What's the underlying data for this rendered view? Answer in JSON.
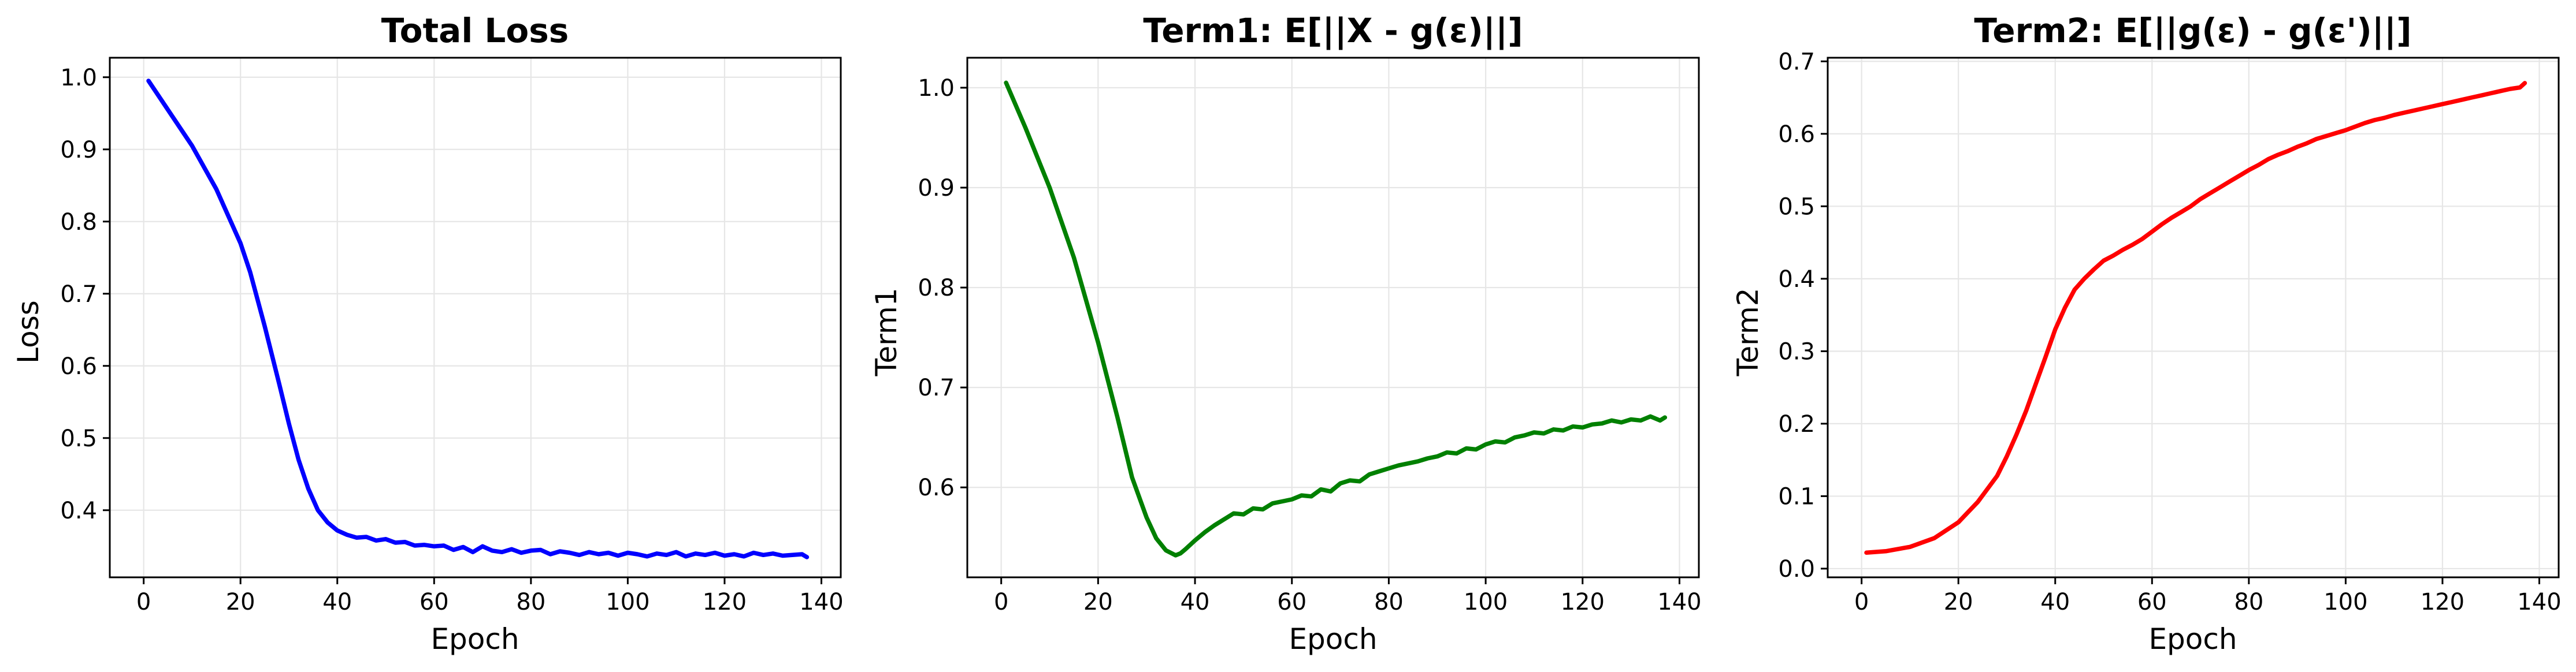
{
  "figure": {
    "layout": "1 row x 3 panels",
    "background": "#ffffff"
  },
  "chart_data": [
    {
      "type": "line",
      "title": "Total Loss",
      "xlabel": "Epoch",
      "ylabel": "Loss",
      "xlim": [
        -7,
        144
      ],
      "ylim": [
        0.307,
        1.027
      ],
      "xticks": [
        0,
        20,
        40,
        60,
        80,
        100,
        120,
        140
      ],
      "yticks": [
        0.4,
        0.5,
        0.6,
        0.7,
        0.8,
        0.9,
        1.0
      ],
      "ytick_decimals": 1,
      "grid": true,
      "series": [
        {
          "color": "#0000ff",
          "x": [
            1,
            5,
            10,
            15,
            20,
            22,
            25,
            28,
            30,
            32,
            34,
            36,
            38,
            40,
            42,
            44,
            46,
            48,
            50,
            52,
            54,
            56,
            58,
            60,
            62,
            64,
            66,
            68,
            70,
            72,
            74,
            76,
            78,
            80,
            82,
            84,
            86,
            88,
            90,
            92,
            94,
            96,
            98,
            100,
            102,
            104,
            106,
            108,
            110,
            112,
            114,
            116,
            118,
            120,
            122,
            124,
            126,
            128,
            130,
            132,
            134,
            136,
            137
          ],
          "y": [
            0.995,
            0.955,
            0.905,
            0.845,
            0.77,
            0.73,
            0.655,
            0.575,
            0.52,
            0.47,
            0.43,
            0.4,
            0.383,
            0.372,
            0.366,
            0.362,
            0.363,
            0.358,
            0.36,
            0.355,
            0.356,
            0.351,
            0.352,
            0.35,
            0.351,
            0.345,
            0.349,
            0.342,
            0.35,
            0.344,
            0.342,
            0.346,
            0.341,
            0.344,
            0.345,
            0.339,
            0.343,
            0.341,
            0.338,
            0.342,
            0.339,
            0.341,
            0.337,
            0.341,
            0.339,
            0.336,
            0.34,
            0.338,
            0.342,
            0.336,
            0.34,
            0.338,
            0.341,
            0.337,
            0.339,
            0.336,
            0.341,
            0.338,
            0.34,
            0.337,
            0.338,
            0.339,
            0.335
          ]
        }
      ]
    },
    {
      "type": "line",
      "title": "Term1: E[||X - g(ε)||]",
      "xlabel": "Epoch",
      "ylabel": "Term1",
      "xlim": [
        -7,
        144
      ],
      "ylim": [
        0.51,
        1.03
      ],
      "xticks": [
        0,
        20,
        40,
        60,
        80,
        100,
        120,
        140
      ],
      "yticks": [
        0.6,
        0.7,
        0.8,
        0.9,
        1.0
      ],
      "ytick_decimals": 1,
      "grid": true,
      "series": [
        {
          "color": "#008000",
          "x": [
            1,
            5,
            10,
            15,
            20,
            24,
            27,
            30,
            32,
            34,
            36,
            37,
            38,
            40,
            42,
            44,
            46,
            48,
            50,
            52,
            54,
            56,
            58,
            60,
            62,
            64,
            66,
            68,
            70,
            72,
            74,
            76,
            78,
            80,
            82,
            84,
            86,
            88,
            90,
            92,
            94,
            96,
            98,
            100,
            102,
            104,
            106,
            108,
            110,
            112,
            114,
            116,
            118,
            120,
            122,
            124,
            126,
            128,
            130,
            132,
            134,
            136,
            137
          ],
          "y": [
            1.005,
            0.96,
            0.9,
            0.83,
            0.745,
            0.67,
            0.61,
            0.57,
            0.549,
            0.537,
            0.532,
            0.534,
            0.538,
            0.547,
            0.555,
            0.562,
            0.568,
            0.574,
            0.573,
            0.579,
            0.578,
            0.584,
            0.586,
            0.588,
            0.592,
            0.591,
            0.598,
            0.596,
            0.604,
            0.607,
            0.606,
            0.613,
            0.616,
            0.619,
            0.622,
            0.624,
            0.626,
            0.629,
            0.631,
            0.635,
            0.634,
            0.639,
            0.638,
            0.643,
            0.646,
            0.645,
            0.65,
            0.652,
            0.655,
            0.654,
            0.658,
            0.657,
            0.661,
            0.66,
            0.663,
            0.664,
            0.667,
            0.665,
            0.668,
            0.667,
            0.671,
            0.667,
            0.67
          ]
        }
      ]
    },
    {
      "type": "line",
      "title": "Term2: E[||g(ε) - g(ε')||]",
      "xlabel": "Epoch",
      "ylabel": "Term2",
      "xlim": [
        -7,
        144
      ],
      "ylim": [
        -0.012,
        0.705
      ],
      "xticks": [
        0,
        20,
        40,
        60,
        80,
        100,
        120,
        140
      ],
      "yticks": [
        0.0,
        0.1,
        0.2,
        0.3,
        0.4,
        0.5,
        0.6,
        0.7
      ],
      "ytick_decimals": 1,
      "grid": true,
      "series": [
        {
          "color": "#ff0000",
          "x": [
            1,
            5,
            10,
            15,
            20,
            24,
            28,
            30,
            32,
            34,
            36,
            38,
            40,
            42,
            44,
            46,
            48,
            50,
            52,
            54,
            56,
            58,
            60,
            62,
            64,
            66,
            68,
            70,
            72,
            74,
            76,
            78,
            80,
            82,
            84,
            86,
            88,
            90,
            92,
            94,
            96,
            98,
            100,
            102,
            104,
            106,
            108,
            110,
            112,
            114,
            116,
            118,
            120,
            122,
            124,
            126,
            128,
            130,
            132,
            134,
            136,
            137
          ],
          "y": [
            0.022,
            0.024,
            0.03,
            0.042,
            0.064,
            0.092,
            0.128,
            0.155,
            0.185,
            0.218,
            0.255,
            0.292,
            0.33,
            0.36,
            0.385,
            0.4,
            0.413,
            0.425,
            0.432,
            0.44,
            0.447,
            0.455,
            0.465,
            0.475,
            0.484,
            0.492,
            0.5,
            0.51,
            0.518,
            0.526,
            0.534,
            0.542,
            0.55,
            0.557,
            0.565,
            0.571,
            0.576,
            0.582,
            0.587,
            0.593,
            0.597,
            0.601,
            0.605,
            0.61,
            0.615,
            0.619,
            0.622,
            0.626,
            0.629,
            0.632,
            0.635,
            0.638,
            0.641,
            0.644,
            0.647,
            0.65,
            0.653,
            0.656,
            0.659,
            0.662,
            0.664,
            0.67
          ]
        }
      ]
    }
  ]
}
